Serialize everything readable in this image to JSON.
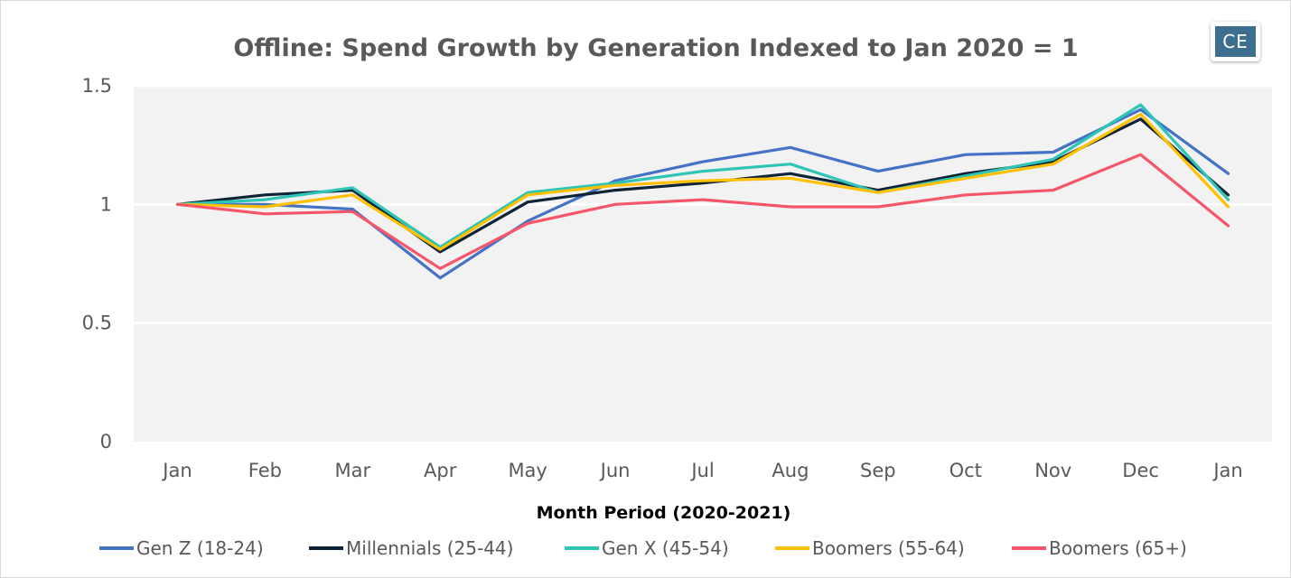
{
  "logo": "CE",
  "chart_data": {
    "type": "line",
    "title": "Offline: Spend Growth by Generation Indexed to Jan 2020 = 1",
    "xlabel": "Month Period (2020-2021)",
    "ylabel": "",
    "categories": [
      "Jan",
      "Feb",
      "Mar",
      "Apr",
      "May",
      "Jun",
      "Jul",
      "Aug",
      "Sep",
      "Oct",
      "Nov",
      "Dec",
      "Jan"
    ],
    "ylim": [
      0,
      1.5
    ],
    "yticks": [
      0,
      0.5,
      1,
      1.5
    ],
    "ytick_labels": [
      "0",
      "0.5",
      "1",
      "1.5"
    ],
    "grid": "horizontal",
    "legend": "bottom",
    "series": [
      {
        "name": "Gen Z (18-24)",
        "color": "#4472c4",
        "values": [
          1.0,
          1.0,
          0.98,
          0.69,
          0.93,
          1.1,
          1.18,
          1.24,
          1.14,
          1.21,
          1.22,
          1.4,
          1.13
        ]
      },
      {
        "name": "Millennials (25-44)",
        "color": "#0d2338",
        "values": [
          1.0,
          1.04,
          1.06,
          0.8,
          1.01,
          1.06,
          1.09,
          1.13,
          1.06,
          1.13,
          1.18,
          1.36,
          1.04
        ]
      },
      {
        "name": "Gen X (45-54)",
        "color": "#2ec4b6",
        "values": [
          1.0,
          1.02,
          1.07,
          0.82,
          1.05,
          1.09,
          1.14,
          1.17,
          1.05,
          1.12,
          1.19,
          1.42,
          1.02
        ]
      },
      {
        "name": "Boomers (55-64)",
        "color": "#ffc000",
        "values": [
          1.0,
          0.99,
          1.04,
          0.81,
          1.04,
          1.08,
          1.1,
          1.11,
          1.05,
          1.11,
          1.17,
          1.38,
          0.99
        ]
      },
      {
        "name": "Boomers (65+)",
        "color": "#f7566a",
        "values": [
          1.0,
          0.96,
          0.97,
          0.73,
          0.92,
          1.0,
          1.02,
          0.99,
          0.99,
          1.04,
          1.06,
          1.21,
          0.91
        ]
      }
    ]
  }
}
